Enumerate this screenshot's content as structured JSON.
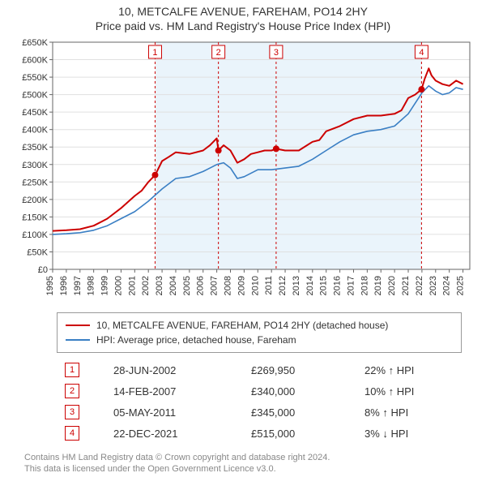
{
  "title_line1": "10, METCALFE AVENUE, FAREHAM, PO14 2HY",
  "title_line2": "Price paid vs. HM Land Registry's House Price Index (HPI)",
  "chart": {
    "type": "line-two-series-with-markers",
    "background_color": "#ffffff",
    "plot_bg": "#ffffff",
    "plot_box_stroke": "#666666",
    "grid_color": "#e0e0e0",
    "shaded_region_color": "#eaf4fb",
    "marker_color": "#cc0000",
    "marker_vline_color": "#cc0000",
    "marker_vline_dash": "3,3",
    "x_years": [
      1995,
      1996,
      1997,
      1998,
      1999,
      2000,
      2001,
      2002,
      2003,
      2004,
      2005,
      2006,
      2007,
      2008,
      2009,
      2010,
      2011,
      2012,
      2013,
      2014,
      2015,
      2016,
      2017,
      2018,
      2019,
      2020,
      2021,
      2022,
      2023,
      2024,
      2025
    ],
    "y_ticks": [
      0,
      50000,
      100000,
      150000,
      200000,
      250000,
      300000,
      350000,
      400000,
      450000,
      500000,
      550000,
      600000,
      650000
    ],
    "y_tick_labels": [
      "£0",
      "£50K",
      "£100K",
      "£150K",
      "£200K",
      "£250K",
      "£300K",
      "£350K",
      "£400K",
      "£450K",
      "£500K",
      "£550K",
      "£600K",
      "£650K"
    ],
    "ylim": [
      0,
      650000
    ],
    "xlim": [
      1995,
      2025.5
    ],
    "series": {
      "property": {
        "color": "#cc0000",
        "width": 2,
        "label": "10, METCALFE AVENUE, FAREHAM, PO14 2HY (detached house)",
        "points": [
          [
            1995,
            110000
          ],
          [
            1996,
            112000
          ],
          [
            1997,
            115000
          ],
          [
            1998,
            125000
          ],
          [
            1999,
            145000
          ],
          [
            2000,
            175000
          ],
          [
            2001,
            210000
          ],
          [
            2001.5,
            225000
          ],
          [
            2002,
            250000
          ],
          [
            2002.5,
            269950
          ],
          [
            2003,
            310000
          ],
          [
            2003.5,
            322000
          ],
          [
            2004,
            335000
          ],
          [
            2005,
            330000
          ],
          [
            2006,
            340000
          ],
          [
            2006.5,
            355000
          ],
          [
            2007,
            375000
          ],
          [
            2007.12,
            340000
          ],
          [
            2007.5,
            355000
          ],
          [
            2008,
            340000
          ],
          [
            2008.5,
            305000
          ],
          [
            2009,
            315000
          ],
          [
            2009.5,
            330000
          ],
          [
            2010,
            335000
          ],
          [
            2010.5,
            340000
          ],
          [
            2011,
            340000
          ],
          [
            2011.34,
            345000
          ],
          [
            2012,
            340000
          ],
          [
            2013,
            340000
          ],
          [
            2014,
            365000
          ],
          [
            2014.5,
            370000
          ],
          [
            2015,
            395000
          ],
          [
            2016,
            410000
          ],
          [
            2017,
            430000
          ],
          [
            2018,
            440000
          ],
          [
            2019,
            440000
          ],
          [
            2020,
            445000
          ],
          [
            2020.5,
            455000
          ],
          [
            2021,
            490000
          ],
          [
            2021.5,
            500000
          ],
          [
            2021.97,
            515000
          ],
          [
            2022.2,
            545000
          ],
          [
            2022.5,
            575000
          ],
          [
            2022.7,
            555000
          ],
          [
            2023,
            540000
          ],
          [
            2023.5,
            530000
          ],
          [
            2024,
            525000
          ],
          [
            2024.5,
            540000
          ],
          [
            2025,
            530000
          ]
        ]
      },
      "hpi": {
        "color": "#3a7fc4",
        "width": 1.6,
        "label": "HPI: Average price, detached house, Fareham",
        "points": [
          [
            1995,
            100000
          ],
          [
            1996,
            102000
          ],
          [
            1997,
            105000
          ],
          [
            1998,
            112000
          ],
          [
            1999,
            125000
          ],
          [
            2000,
            145000
          ],
          [
            2001,
            165000
          ],
          [
            2002,
            195000
          ],
          [
            2003,
            230000
          ],
          [
            2004,
            260000
          ],
          [
            2005,
            265000
          ],
          [
            2006,
            280000
          ],
          [
            2007,
            300000
          ],
          [
            2007.5,
            305000
          ],
          [
            2008,
            290000
          ],
          [
            2008.5,
            260000
          ],
          [
            2009,
            265000
          ],
          [
            2010,
            285000
          ],
          [
            2011,
            285000
          ],
          [
            2012,
            290000
          ],
          [
            2013,
            295000
          ],
          [
            2014,
            315000
          ],
          [
            2015,
            340000
          ],
          [
            2016,
            365000
          ],
          [
            2017,
            385000
          ],
          [
            2018,
            395000
          ],
          [
            2019,
            400000
          ],
          [
            2020,
            410000
          ],
          [
            2021,
            445000
          ],
          [
            2022,
            505000
          ],
          [
            2022.5,
            525000
          ],
          [
            2023,
            510000
          ],
          [
            2023.5,
            500000
          ],
          [
            2024,
            505000
          ],
          [
            2024.5,
            520000
          ],
          [
            2025,
            515000
          ]
        ]
      }
    },
    "shaded_region": {
      "x_start": 2002.49,
      "x_end": 2021.97
    },
    "markers": [
      {
        "n": "1",
        "x": 2002.49,
        "y": 269950
      },
      {
        "n": "2",
        "x": 2007.12,
        "y": 340000
      },
      {
        "n": "3",
        "x": 2011.34,
        "y": 345000
      },
      {
        "n": "4",
        "x": 2021.97,
        "y": 515000
      }
    ],
    "marker_label_box_border": "#cc0000",
    "marker_label_box_fill": "#ffffff"
  },
  "sales": [
    {
      "n": "1",
      "date": "28-JUN-2002",
      "price": "£269,950",
      "delta": "22% ↑ HPI"
    },
    {
      "n": "2",
      "date": "14-FEB-2007",
      "price": "£340,000",
      "delta": "10% ↑ HPI"
    },
    {
      "n": "3",
      "date": "05-MAY-2011",
      "price": "£345,000",
      "delta": "8% ↑ HPI"
    },
    {
      "n": "4",
      "date": "22-DEC-2021",
      "price": "£515,000",
      "delta": "3% ↓ HPI"
    }
  ],
  "footer": {
    "line1": "Contains HM Land Registry data © Crown copyright and database right 2024.",
    "line2": "This data is licensed under the Open Government Licence v3.0."
  }
}
